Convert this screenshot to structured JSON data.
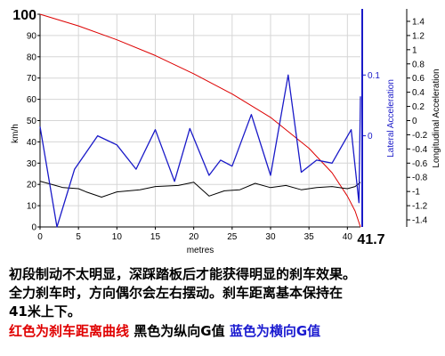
{
  "chart_data": {
    "type": "line",
    "title": "",
    "xlabel": "metres",
    "ylabel_left": "km/h",
    "ylabel_right_inner": "Lateral Acceleration",
    "ylabel_right_outer": "Longitudinal Acceleration",
    "xlim": [
      0,
      41.7
    ],
    "ylim_left": [
      0,
      100
    ],
    "ylim_lateral": [
      -0.15,
      0.2
    ],
    "ylim_longitudinal": [
      -1.5,
      1.5
    ],
    "x_ticks": [
      "0",
      "5",
      "10",
      "15",
      "20",
      "25",
      "30",
      "35",
      "40"
    ],
    "x_end_label": "41.7",
    "y_ticks_left": [
      "100",
      "90",
      "80",
      "70",
      "60",
      "50",
      "40",
      "30",
      "20",
      "10",
      "0"
    ],
    "y_ticks_lateral": [
      "0.1",
      "0"
    ],
    "y_ticks_longitudinal": [
      "1.4",
      "1.2",
      "1",
      "0.8",
      "0.6",
      "0.4",
      "0.2",
      "0",
      "-0.2",
      "-0.4",
      "-0.6",
      "-0.8",
      "-1",
      "-1.2",
      "-1.4"
    ],
    "grid": true,
    "series": [
      {
        "color": "#dd0000",
        "axis": "left",
        "x": [
          0,
          5,
          10,
          15,
          20,
          25,
          30,
          35,
          38,
          40,
          41,
          41.7
        ],
        "values": [
          100,
          94.5,
          88,
          80.6,
          72,
          62.5,
          51.5,
          37,
          25.5,
          14.5,
          7.5,
          0
        ]
      },
      {
        "color": "#000000",
        "axis": "left",
        "x": [
          0,
          2,
          3,
          5,
          6,
          8,
          10,
          13,
          15,
          18,
          20,
          22,
          24,
          26,
          28,
          30,
          32,
          34,
          36,
          38,
          40,
          41,
          41.7
        ],
        "values": [
          21.5,
          19.5,
          18.5,
          18,
          16.5,
          14,
          16.5,
          17.5,
          19,
          19.5,
          21,
          14.5,
          17,
          17.5,
          20.5,
          18.5,
          19.5,
          17.5,
          18.5,
          19,
          18,
          19,
          21
        ]
      },
      {
        "color": "#1a1ac8",
        "axis": "lateral",
        "x": [
          0,
          2.2,
          4.5,
          7.5,
          10,
          12.5,
          15,
          17.5,
          19.5,
          22,
          23.5,
          25,
          27.5,
          30,
          32.3,
          34,
          36,
          38,
          40.5,
          41.5,
          41.7
        ],
        "values": [
          0.015,
          -0.15,
          -0.055,
          -0.0,
          -0.015,
          -0.055,
          0.01,
          -0.075,
          0.012,
          -0.065,
          -0.04,
          -0.05,
          0.035,
          -0.065,
          0.1,
          -0.06,
          -0.04,
          -0.045,
          0.01,
          -0.11,
          0.065
        ]
      }
    ]
  },
  "caption": {
    "line1": "初段制动不太明显，深踩踏板后才能获得明显的刹车效果。",
    "line2": "全力刹车时，方向偶尔会左右摆动。刹车距离基本保持在",
    "line3": "41米上下。",
    "legend_red": "红色为刹车距离曲线",
    "legend_black": "黑色为纵向G值",
    "legend_blue": "蓝色为横向G值"
  }
}
